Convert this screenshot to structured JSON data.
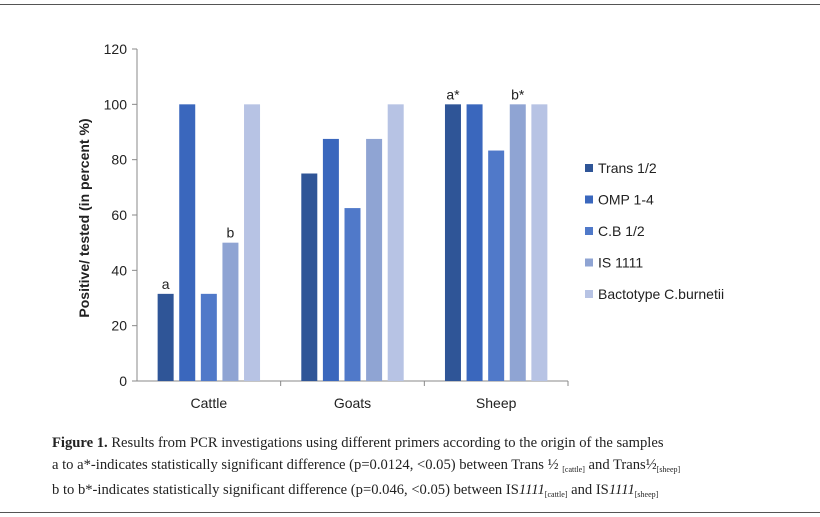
{
  "chart_data": {
    "type": "bar",
    "title": "",
    "xlabel": "",
    "ylabel": "Positive/ tested (in percent %)",
    "ylim": [
      0,
      120
    ],
    "yticks": [
      0,
      20,
      40,
      60,
      80,
      100,
      120
    ],
    "grid": false,
    "legend": "right",
    "categories": [
      "Cattle",
      "Goats",
      "Sheep"
    ],
    "series": [
      {
        "name": "Trans 1/2",
        "color": "#2f5597",
        "values": [
          31.5,
          75,
          100
        ]
      },
      {
        "name": "OMP 1-4",
        "color": "#3a67bd",
        "values": [
          100,
          87.5,
          100
        ]
      },
      {
        "name": "C.B 1/2",
        "color": "#5079c9",
        "values": [
          31.5,
          62.5,
          83.3
        ]
      },
      {
        "name": "IS 1111",
        "color": "#8fa4d3",
        "values": [
          50,
          87.5,
          100
        ]
      },
      {
        "name": "Bactotype C.burnetii",
        "color": "#b7c3e4",
        "values": [
          100,
          100,
          100
        ]
      }
    ],
    "annotations": [
      {
        "category": "Cattle",
        "series": "Trans 1/2",
        "text": "a"
      },
      {
        "category": "Cattle",
        "series": "IS 1111",
        "text": "b"
      },
      {
        "category": "Sheep",
        "series": "Trans 1/2",
        "text": "a*"
      },
      {
        "category": "Sheep",
        "series": "IS 1111",
        "text": "b*"
      }
    ]
  },
  "caption": {
    "fig_label": "Figure 1.",
    "line1": "Results from PCR investigations using different primers according to the origin of the samples",
    "line2_a": "a to a*-indicates statistically significant difference (p=0.0124, <0.05) between Trans ½ ",
    "line2_sub1": "[cattle]",
    "line2_b": " and Trans½",
    "line2_sub2": "[sheep]",
    "line3_a": "b to b*-indicates statistically significant difference (p=0.046, <0.05) between IS",
    "line3_i1": "1111",
    "line3_sub1": "[cattle]",
    "line3_b": " and IS",
    "line3_i2": "1111",
    "line3_sub2": "[sheep]"
  }
}
